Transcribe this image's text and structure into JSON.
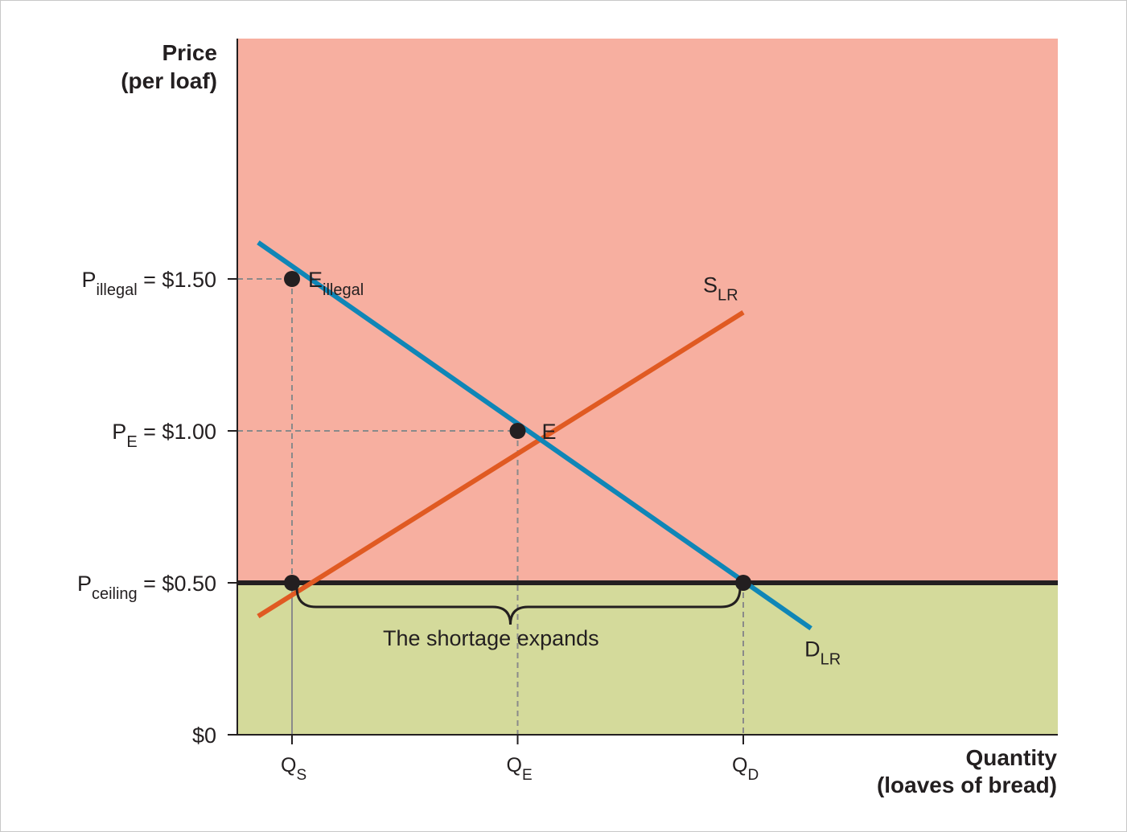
{
  "chart_data": {
    "type": "line",
    "ylabel": [
      "Price",
      "(per loaf)"
    ],
    "xlabel": [
      "Quantity",
      "(loaves of bread)"
    ],
    "ylim": [
      0,
      2.0
    ],
    "y_ticks": [
      {
        "value": 1.5,
        "main": "P",
        "sub": "illegal",
        "rest": " = $1.50"
      },
      {
        "value": 1.0,
        "main": "P",
        "sub": "E",
        "rest": " = $1.00"
      },
      {
        "value": 0.5,
        "main": "P",
        "sub": "ceiling",
        "rest": " = $0.50"
      },
      {
        "value": 0,
        "main": "$0",
        "sub": "",
        "rest": ""
      }
    ],
    "x_ticks": [
      {
        "value": 1,
        "main": "Q",
        "sub": "S"
      },
      {
        "value": 2,
        "main": "Q",
        "sub": "E"
      },
      {
        "value": 3,
        "main": "Q",
        "sub": "D"
      }
    ],
    "series": [
      {
        "name_main": "S",
        "name_sub": "LR",
        "color": "#e05a22",
        "points": [
          [
            0.85,
            0.39
          ],
          [
            3.0,
            1.39
          ]
        ]
      },
      {
        "name_main": "D",
        "name_sub": "LR",
        "color": "#0f86b7",
        "points": [
          [
            0.85,
            1.62
          ],
          [
            3.3,
            0.35
          ]
        ]
      }
    ],
    "points": [
      {
        "name": "Eillegal",
        "main": "E",
        "sub": "illegal",
        "x": 1,
        "y": 1.5
      },
      {
        "name": "E",
        "main": "E",
        "sub": "",
        "x": 2,
        "y": 1.0
      },
      {
        "name": "ceiling-supply",
        "main": "",
        "sub": "",
        "x": 1,
        "y": 0.5
      },
      {
        "name": "ceiling-demand",
        "main": "",
        "sub": "",
        "x": 3,
        "y": 0.5
      }
    ],
    "price_ceiling": 0.5,
    "annotation": "The shortage expands",
    "colors": {
      "above_ceiling": "#f7afa0",
      "below_ceiling": "#d4da9b",
      "ceiling_line": "#231f20",
      "dash": "#8a8a8a"
    }
  }
}
